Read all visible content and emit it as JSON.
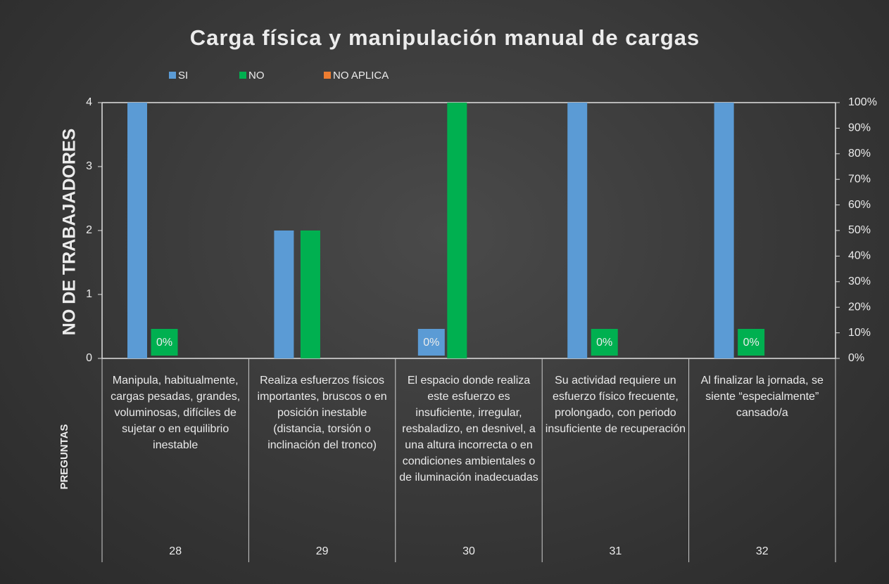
{
  "chart_data": {
    "type": "bar",
    "title": "Carga física y manipulación manual de cargas",
    "y_label": "NO DE TRABAJADORES",
    "x_label": "PREGUNTAS",
    "categories": [
      "Manipula, habitualmente, cargas pesadas, grandes, voluminosas, difíciles de sujetar o en equilibrio inestable",
      "Realiza esfuerzos físicos importantes, bruscos o en posición inestable (distancia, torsión o inclinación del tronco)",
      "El espacio donde realiza este esfuerzo es insuficiente, irregular, resbaladizo, en desnivel, a una altura incorrecta o en condiciones ambientales o de iluminación inadecuadas",
      "Su actividad requiere un esfuerzo físico frecuente, prolongado, con periodo insuficiente de recuperación",
      "Al finalizar la jornada, se siente “especialmente” cansado/a"
    ],
    "category_codes": [
      "28",
      "29",
      "30",
      "31",
      "32"
    ],
    "series": [
      {
        "name": "SI",
        "color": "#5b9bd5",
        "values": [
          4,
          2,
          0,
          4,
          4
        ],
        "value_labels": [
          null,
          null,
          "0%",
          null,
          null
        ]
      },
      {
        "name": "NO",
        "color": "#00b050",
        "values": [
          0,
          2,
          4,
          0,
          0
        ],
        "value_labels": [
          "0%",
          null,
          null,
          "0%",
          "0%"
        ]
      },
      {
        "name": "NO APLICA",
        "color": "#ed7d31",
        "values": [
          0,
          0,
          0,
          0,
          0
        ],
        "value_labels": [
          null,
          null,
          null,
          null,
          null
        ]
      }
    ],
    "ylim": [
      0,
      4
    ],
    "yticks": [
      0,
      1,
      2,
      3,
      4
    ],
    "y2lim": [
      0,
      100
    ],
    "y2ticks": [
      {
        "value": 0,
        "label": "0%"
      },
      {
        "value": 10,
        "label": "10%"
      },
      {
        "value": 20,
        "label": "20%"
      },
      {
        "value": 30,
        "label": "30%"
      },
      {
        "value": 40,
        "label": "40%"
      },
      {
        "value": 50,
        "label": "50%"
      },
      {
        "value": 60,
        "label": "60%"
      },
      {
        "value": 70,
        "label": "70%"
      },
      {
        "value": 80,
        "label": "80%"
      },
      {
        "value": 90,
        "label": "90%"
      },
      {
        "value": 100,
        "label": "100%"
      }
    ],
    "legend": "top-left"
  }
}
